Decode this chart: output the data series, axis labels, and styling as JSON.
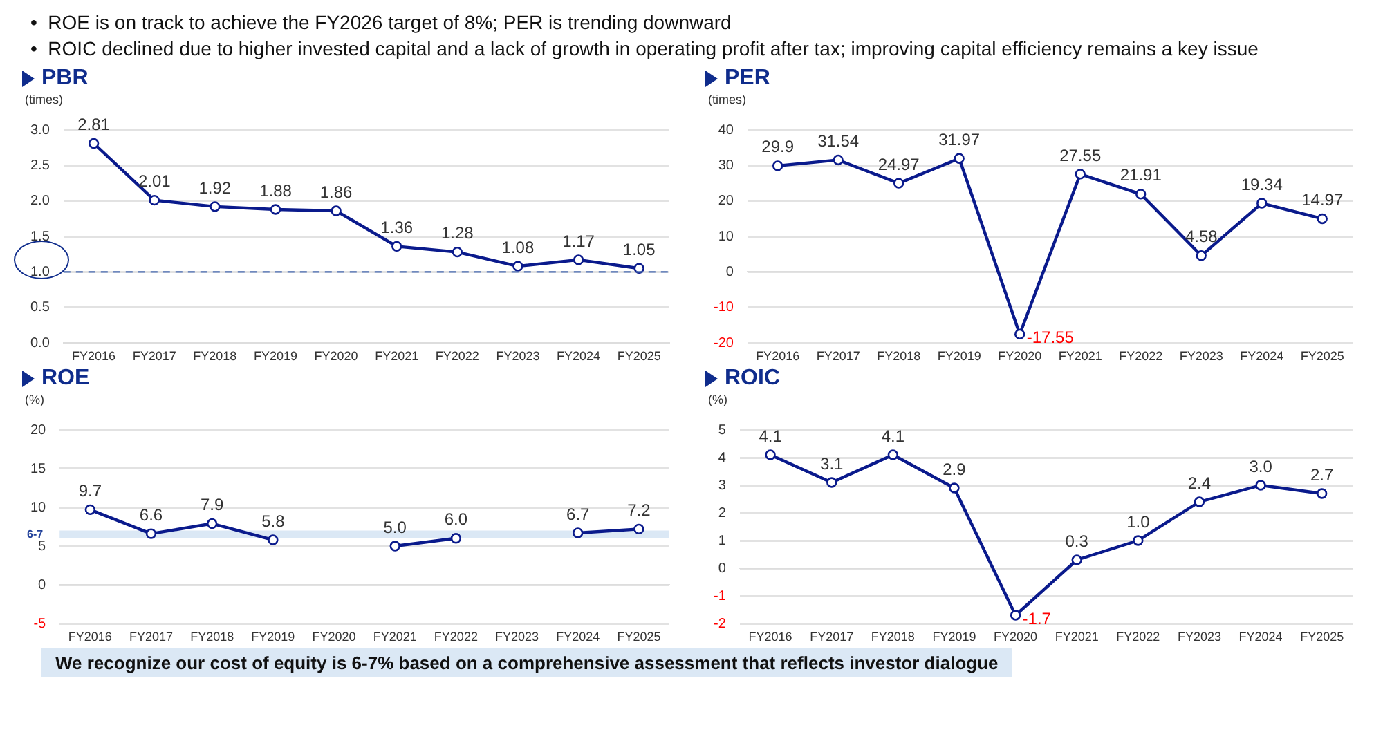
{
  "chart_data": [
    {
      "type": "line",
      "title": "PBR",
      "ylabel": "(times)",
      "categories": [
        "FY2016",
        "FY2017",
        "FY2018",
        "FY2019",
        "FY2020",
        "FY2021",
        "FY2022",
        "FY2023",
        "FY2024",
        "FY2025"
      ],
      "series": [
        {
          "color": "#0a1a8c",
          "values": [
            2.81,
            2.01,
            1.92,
            1.88,
            1.86,
            1.36,
            1.28,
            1.08,
            1.17,
            1.05
          ]
        }
      ],
      "ylim": [
        0,
        3
      ],
      "yticks": [
        {
          "value": 0,
          "label": "0.0"
        },
        {
          "value": 0.5,
          "label": "0.5"
        },
        {
          "value": 1,
          "label": "1.0"
        },
        {
          "value": 1.5,
          "label": "1.5"
        },
        {
          "value": 2,
          "label": "2.0"
        },
        {
          "value": 2.5,
          "label": "2.5"
        },
        {
          "value": 3,
          "label": "3.0"
        }
      ],
      "ref_lines": [
        {
          "axis": "y",
          "value": 1,
          "color": "#4a6cb3",
          "line_style": "dashed"
        }
      ],
      "annotations": [
        "•  ROE is on track to achieve the FY2026 target of 8%; PER is trending downward",
        "•  ROIC declined due to higher invested capital and a lack of growth in operating profit after tax; improving capital efficiency remains a key issue"
      ],
      "grid": "y",
      "marker": "circle",
      "line_style": "solid",
      "data_labels": true
    },
    {
      "type": "line",
      "title": "PER",
      "ylabel": "(times)",
      "categories": [
        "FY2016",
        "FY2017",
        "FY2018",
        "FY2019",
        "FY2020",
        "FY2021",
        "FY2022",
        "FY2023",
        "FY2024",
        "FY2025"
      ],
      "series": [
        {
          "color": "#0a1a8c",
          "values": [
            29.9,
            31.54,
            24.97,
            31.97,
            -17.55,
            27.55,
            21.91,
            4.58,
            19.34,
            14.97
          ]
        }
      ],
      "ylim": [
        -20,
        40
      ],
      "yticks": [
        -20,
        -10,
        0,
        10,
        20,
        30,
        40
      ],
      "grid": "y",
      "marker": "circle",
      "line_style": "solid",
      "data_labels": true
    },
    {
      "type": "line",
      "title": "ROE",
      "ylabel": "(%)",
      "categories": [
        "FY2016",
        "FY2017",
        "FY2018",
        "FY2019",
        "FY2020",
        "FY2021",
        "FY2022",
        "FY2023",
        "FY2024",
        "FY2025"
      ],
      "series": [
        {
          "color": "#0a1a8c",
          "values": [
            9.7,
            6.6,
            7.9,
            5.8,
            null,
            5.0,
            6.0,
            null,
            6.7,
            7.2
          ],
          "value_labels": [
            "9.7",
            "6.6",
            "7.9",
            "5.8",
            null,
            "5.0",
            "6.0",
            null,
            "6.7",
            "7.2"
          ]
        }
      ],
      "ylim": [
        -5,
        20
      ],
      "yticks": [
        -5,
        0,
        5,
        10,
        15,
        20
      ],
      "bands": [
        {
          "axis": "y",
          "from": 6,
          "to": 7,
          "label": "6-7",
          "color": "#dbe8f5"
        }
      ],
      "annotations": [
        "We recognize our cost of equity is 6-7% based on a comprehensive assessment that reflects investor dialogue"
      ],
      "grid": "y",
      "marker": "circle",
      "line_style": "solid"
    },
    {
      "type": "line",
      "title": "ROIC",
      "ylabel": "(%)",
      "categories": [
        "FY2016",
        "FY2017",
        "FY2018",
        "FY2019",
        "FY2020",
        "FY2021",
        "FY2022",
        "FY2023",
        "FY2024",
        "FY2025"
      ],
      "series": [
        {
          "color": "#0a1a8c",
          "values": [
            4.1,
            3.1,
            4.1,
            2.9,
            -1.7,
            0.3,
            1.0,
            2.4,
            3.0,
            2.7
          ],
          "value_labels": [
            "4.1",
            "3.1",
            "4.1",
            "2.9",
            "-1.7",
            "0.3",
            "1.0",
            "2.4",
            "3.0",
            "2.7"
          ]
        }
      ],
      "ylim": [
        -2,
        5
      ],
      "yticks": [
        -2,
        -1,
        0,
        1,
        2,
        3,
        4,
        5
      ],
      "grid": "y",
      "marker": "circle",
      "line_style": "solid"
    }
  ]
}
